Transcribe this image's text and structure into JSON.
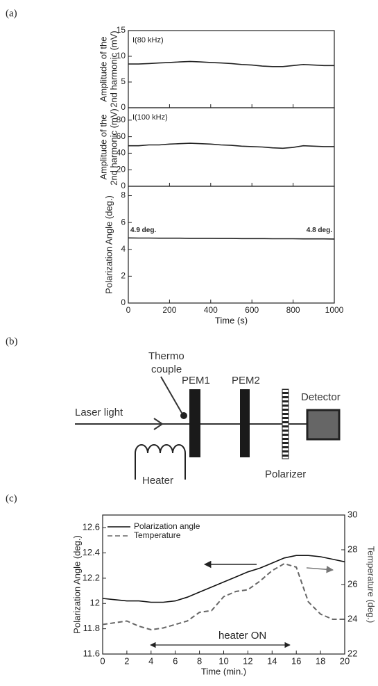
{
  "panel_labels": [
    "(a)",
    "(b)",
    "(c)"
  ],
  "chart_data": [
    {
      "type": "line",
      "ylabel": [
        "Amplitude of the",
        "2nd harmonic (mV)"
      ],
      "annotation": "I(80 kHz)",
      "x": [
        0,
        50,
        100,
        150,
        200,
        250,
        300,
        350,
        400,
        450,
        500,
        550,
        600,
        650,
        700,
        750,
        800,
        850,
        900,
        950,
        1000
      ],
      "series": [
        {
          "color": "#222",
          "values": [
            8.5,
            8.5,
            8.6,
            8.7,
            8.8,
            8.9,
            9.0,
            8.9,
            8.8,
            8.7,
            8.6,
            8.4,
            8.3,
            8.1,
            8.0,
            8.0,
            8.2,
            8.4,
            8.3,
            8.2,
            8.2
          ]
        }
      ],
      "xlim": [
        0,
        1000
      ],
      "ylim": [
        0,
        15
      ],
      "yticks": [
        0,
        5,
        10,
        15
      ]
    },
    {
      "type": "line",
      "ylabel": [
        "Amplitude of the",
        "2nd harmonic (mV)"
      ],
      "annotation": "I(100 kHz)",
      "x": [
        0,
        50,
        100,
        150,
        200,
        250,
        300,
        350,
        400,
        450,
        500,
        550,
        600,
        650,
        700,
        750,
        800,
        850,
        900,
        950,
        1000
      ],
      "series": [
        {
          "color": "#222",
          "values": [
            49,
            49,
            50,
            50,
            51,
            51.5,
            52,
            51.5,
            51,
            50,
            49.5,
            48.5,
            48,
            47.5,
            46.5,
            46,
            47,
            49,
            48.5,
            48,
            48
          ]
        }
      ],
      "xlim": [
        0,
        1000
      ],
      "ylim": [
        0,
        95
      ],
      "yticks": [
        0,
        20,
        40,
        60,
        80
      ]
    },
    {
      "type": "line",
      "ylabel": [
        "Polarization Angle (deg.)"
      ],
      "xlabel": "Time (s)",
      "annotations": [
        "4.9 deg.",
        "4.8 deg."
      ],
      "x": [
        0,
        50,
        100,
        150,
        200,
        250,
        300,
        350,
        400,
        450,
        500,
        550,
        600,
        650,
        700,
        750,
        800,
        850,
        900,
        950,
        1000
      ],
      "series": [
        {
          "color": "#222",
          "values": [
            4.85,
            4.84,
            4.84,
            4.83,
            4.83,
            4.83,
            4.82,
            4.82,
            4.82,
            4.81,
            4.81,
            4.8,
            4.8,
            4.8,
            4.79,
            4.79,
            4.79,
            4.78,
            4.78,
            4.78,
            4.77
          ]
        }
      ],
      "xlim": [
        0,
        1000
      ],
      "xticks": [
        0,
        200,
        400,
        600,
        800,
        1000
      ],
      "ylim": [
        0,
        8.7
      ],
      "yticks": [
        0,
        2,
        4,
        6,
        8
      ]
    },
    {
      "type": "line",
      "ylabel": [
        "Polarization Angle (deg.)"
      ],
      "y2label": "Temperature (deg.)",
      "xlabel": "Time (min.)",
      "annotation": "heater ON",
      "x": [
        0,
        1,
        2,
        3,
        4,
        5,
        6,
        7,
        8,
        9,
        10,
        11,
        12,
        13,
        14,
        15,
        16,
        17,
        18,
        19,
        20
      ],
      "series": [
        {
          "name": "Polarization angle",
          "color": "#111",
          "linestyle": "solid",
          "values": [
            12.04,
            12.03,
            12.02,
            12.02,
            12.01,
            12.01,
            12.02,
            12.05,
            12.09,
            12.13,
            12.17,
            12.21,
            12.25,
            12.28,
            12.32,
            12.36,
            12.38,
            12.38,
            12.37,
            12.35,
            12.33
          ]
        },
        {
          "name": "Temperature",
          "color": "#666",
          "linestyle": "dashed",
          "axis": "y2",
          "values": [
            23.7,
            23.8,
            23.9,
            23.6,
            23.4,
            23.5,
            23.7,
            23.9,
            24.4,
            24.5,
            25.3,
            25.6,
            25.7,
            26.2,
            26.8,
            27.2,
            27.0,
            25.0,
            24.3,
            24.0,
            24.0
          ]
        }
      ],
      "xlim": [
        0,
        20
      ],
      "xticks": [
        0,
        2,
        4,
        6,
        8,
        10,
        12,
        14,
        16,
        18,
        20
      ],
      "ylim": [
        11.6,
        12.7
      ],
      "yticks": [
        11.6,
        11.8,
        12,
        12.2,
        12.4,
        12.6
      ],
      "y2lim": [
        22,
        30
      ],
      "y2ticks": [
        22,
        24,
        26,
        28,
        30
      ],
      "legend": "upper left"
    }
  ],
  "diagram": {
    "thermocouple": [
      "Thermo",
      "couple"
    ],
    "pem1": "PEM1",
    "pem2": "PEM2",
    "detector": "Detector",
    "laser": "Laser light",
    "heater": "Heater",
    "polarizer": "Polarizer"
  }
}
